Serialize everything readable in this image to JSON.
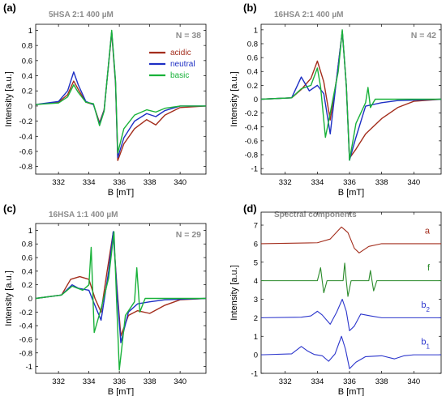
{
  "chart_data": [
    {
      "type": "line",
      "panel": "(a)",
      "title": "5HSA 2:1 400 µM",
      "n_label": "N = 38",
      "xlabel": "B [mT]",
      "ylabel": "Intensity [a.u.]",
      "xlim": [
        330.5,
        341.7
      ],
      "ylim": [
        -0.9,
        1.08
      ],
      "xticks": [
        332,
        334,
        336,
        338,
        340
      ],
      "yticks": [
        -0.8,
        -0.6,
        -0.4,
        -0.2,
        0,
        0.2,
        0.4,
        0.6,
        0.8,
        1
      ],
      "legend": [
        {
          "label": "acidic",
          "color": "#a32d1c"
        },
        {
          "label": "neutral",
          "color": "#1d2fc4"
        },
        {
          "label": "basic",
          "color": "#19b23a"
        }
      ],
      "series": [
        {
          "color": "#a32d1c",
          "points": [
            [
              330.5,
              0.02
            ],
            [
              332.0,
              0.05
            ],
            [
              332.6,
              0.15
            ],
            [
              333.0,
              0.33
            ],
            [
              333.3,
              0.22
            ],
            [
              333.8,
              0.05
            ],
            [
              334.3,
              0.02
            ],
            [
              334.7,
              -0.22
            ],
            [
              335.0,
              -0.05
            ],
            [
              335.5,
              0.97
            ],
            [
              335.75,
              0.3
            ],
            [
              335.9,
              -0.72
            ],
            [
              336.3,
              -0.5
            ],
            [
              337.0,
              -0.3
            ],
            [
              337.8,
              -0.18
            ],
            [
              338.4,
              -0.25
            ],
            [
              339.0,
              -0.12
            ],
            [
              340.0,
              -0.02
            ],
            [
              341.7,
              0.0
            ]
          ]
        },
        {
          "color": "#1d2fc4",
          "points": [
            [
              330.5,
              0.02
            ],
            [
              332.0,
              0.06
            ],
            [
              332.6,
              0.2
            ],
            [
              333.0,
              0.45
            ],
            [
              333.3,
              0.28
            ],
            [
              333.8,
              0.06
            ],
            [
              334.3,
              0.02
            ],
            [
              334.7,
              -0.24
            ],
            [
              335.0,
              -0.06
            ],
            [
              335.5,
              0.99
            ],
            [
              335.75,
              0.32
            ],
            [
              335.9,
              -0.68
            ],
            [
              336.3,
              -0.42
            ],
            [
              337.0,
              -0.2
            ],
            [
              337.8,
              -0.1
            ],
            [
              338.4,
              -0.14
            ],
            [
              339.0,
              -0.06
            ],
            [
              340.0,
              0.0
            ],
            [
              341.7,
              0.0
            ]
          ]
        },
        {
          "color": "#19b23a",
          "points": [
            [
              330.5,
              0.02
            ],
            [
              332.0,
              0.04
            ],
            [
              332.6,
              0.12
            ],
            [
              333.0,
              0.28
            ],
            [
              333.3,
              0.18
            ],
            [
              333.8,
              0.05
            ],
            [
              334.3,
              0.03
            ],
            [
              334.7,
              -0.26
            ],
            [
              335.0,
              -0.07
            ],
            [
              335.5,
              1.0
            ],
            [
              335.75,
              0.34
            ],
            [
              335.9,
              -0.62
            ],
            [
              336.3,
              -0.3
            ],
            [
              337.0,
              -0.12
            ],
            [
              337.8,
              -0.05
            ],
            [
              338.4,
              -0.08
            ],
            [
              339.0,
              -0.03
            ],
            [
              340.0,
              0.0
            ],
            [
              341.7,
              0.0
            ]
          ]
        }
      ]
    },
    {
      "type": "line",
      "panel": "(b)",
      "title": "16HSA 2:1 400 µM",
      "n_label": "N = 42",
      "xlabel": "B [mT]",
      "ylabel": "Intensity [a.u.]",
      "xlim": [
        330.5,
        341.7
      ],
      "ylim": [
        -1.08,
        1.08
      ],
      "xticks": [
        332,
        334,
        336,
        338,
        340
      ],
      "yticks": [
        -1,
        -0.8,
        -0.6,
        -0.4,
        -0.2,
        0,
        0.2,
        0.4,
        0.6,
        0.8,
        1
      ],
      "series": [
        {
          "color": "#a32d1c",
          "points": [
            [
              330.5,
              0.0
            ],
            [
              332.4,
              0.02
            ],
            [
              333.0,
              0.14
            ],
            [
              333.6,
              0.3
            ],
            [
              334.0,
              0.55
            ],
            [
              334.4,
              0.25
            ],
            [
              334.8,
              -0.3
            ],
            [
              335.2,
              0.3
            ],
            [
              335.55,
              0.98
            ],
            [
              335.8,
              0.2
            ],
            [
              336.0,
              -0.85
            ],
            [
              336.4,
              -0.72
            ],
            [
              337.0,
              -0.5
            ],
            [
              338.0,
              -0.28
            ],
            [
              339.0,
              -0.12
            ],
            [
              340.0,
              -0.03
            ],
            [
              341.7,
              0.0
            ]
          ]
        },
        {
          "color": "#1d2fc4",
          "points": [
            [
              330.5,
              0.0
            ],
            [
              332.4,
              0.02
            ],
            [
              333.0,
              0.32
            ],
            [
              333.5,
              0.12
            ],
            [
              334.0,
              0.2
            ],
            [
              334.4,
              0.08
            ],
            [
              334.8,
              -0.5
            ],
            [
              335.2,
              0.3
            ],
            [
              335.55,
              0.98
            ],
            [
              335.8,
              0.2
            ],
            [
              336.0,
              -0.88
            ],
            [
              336.4,
              -0.55
            ],
            [
              337.0,
              -0.1
            ],
            [
              338.0,
              -0.05
            ],
            [
              339.0,
              -0.02
            ],
            [
              341.7,
              0.0
            ]
          ]
        },
        {
          "color": "#19b23a",
          "points": [
            [
              330.5,
              0.0
            ],
            [
              332.4,
              0.02
            ],
            [
              333.0,
              0.15
            ],
            [
              333.6,
              0.2
            ],
            [
              334.0,
              0.45
            ],
            [
              334.2,
              0.18
            ],
            [
              334.5,
              -0.55
            ],
            [
              334.8,
              -0.2
            ],
            [
              335.3,
              0.4
            ],
            [
              335.55,
              1.0
            ],
            [
              335.8,
              0.2
            ],
            [
              336.0,
              -0.88
            ],
            [
              336.4,
              -0.35
            ],
            [
              337.0,
              -0.05
            ],
            [
              337.15,
              0.17
            ],
            [
              337.3,
              -0.12
            ],
            [
              337.6,
              0.0
            ],
            [
              339.0,
              0.0
            ],
            [
              341.7,
              0.0
            ]
          ]
        }
      ]
    },
    {
      "type": "line",
      "panel": "(c)",
      "title": "16HSA 1:1 400 µM",
      "n_label": "N = 29",
      "xlabel": "B [mT]",
      "ylabel": "Intensity [a.u.]",
      "xlim": [
        330.5,
        341.7
      ],
      "ylim": [
        -1.1,
        1.1
      ],
      "xticks": [
        332,
        334,
        336,
        338,
        340
      ],
      "yticks": [
        -1,
        -0.8,
        -0.6,
        -0.4,
        -0.2,
        0,
        0.2,
        0.4,
        0.6,
        0.8,
        1
      ],
      "series": [
        {
          "color": "#a32d1c",
          "points": [
            [
              330.5,
              0.0
            ],
            [
              332.2,
              0.05
            ],
            [
              332.8,
              0.28
            ],
            [
              333.4,
              0.32
            ],
            [
              334.0,
              0.28
            ],
            [
              334.4,
              0.0
            ],
            [
              334.8,
              -0.2
            ],
            [
              335.2,
              0.4
            ],
            [
              335.6,
              0.97
            ],
            [
              335.85,
              0.15
            ],
            [
              336.1,
              -0.55
            ],
            [
              336.6,
              -0.25
            ],
            [
              337.2,
              -0.18
            ],
            [
              338.0,
              -0.22
            ],
            [
              339.0,
              -0.1
            ],
            [
              340.0,
              -0.02
            ],
            [
              341.7,
              0.0
            ]
          ]
        },
        {
          "color": "#1d2fc4",
          "points": [
            [
              330.5,
              0.0
            ],
            [
              332.2,
              0.05
            ],
            [
              332.9,
              0.2
            ],
            [
              333.3,
              0.15
            ],
            [
              334.0,
              0.12
            ],
            [
              334.3,
              -0.05
            ],
            [
              334.8,
              -0.32
            ],
            [
              335.3,
              0.4
            ],
            [
              335.6,
              0.98
            ],
            [
              335.85,
              0.1
            ],
            [
              336.1,
              -0.65
            ],
            [
              336.6,
              -0.2
            ],
            [
              337.2,
              -0.08
            ],
            [
              338.0,
              -0.05
            ],
            [
              339.0,
              -0.02
            ],
            [
              341.7,
              0.0
            ]
          ]
        },
        {
          "color": "#19b23a",
          "points": [
            [
              330.5,
              0.0
            ],
            [
              332.2,
              0.05
            ],
            [
              332.9,
              0.18
            ],
            [
              333.6,
              0.12
            ],
            [
              334.0,
              0.2
            ],
            [
              334.15,
              0.75
            ],
            [
              334.35,
              -0.5
            ],
            [
              334.8,
              -0.15
            ],
            [
              335.3,
              0.3
            ],
            [
              335.65,
              0.98
            ],
            [
              335.85,
              -0.2
            ],
            [
              336.0,
              -1.05
            ],
            [
              336.4,
              -0.25
            ],
            [
              337.0,
              -0.05
            ],
            [
              337.15,
              0.45
            ],
            [
              337.35,
              -0.2
            ],
            [
              337.7,
              0.0
            ],
            [
              341.7,
              0.0
            ]
          ]
        }
      ]
    },
    {
      "type": "line",
      "panel": "(d)",
      "title": "Spectral components",
      "xlabel": "B [mT]",
      "ylabel": "Intensity [a.u.]",
      "xlim": [
        330.5,
        341.7
      ],
      "ylim": [
        -1.0,
        7.7
      ],
      "xticks": [
        332,
        334,
        336,
        338,
        340
      ],
      "yticks": [
        -1,
        0,
        1,
        2,
        3,
        4,
        5,
        6,
        7
      ],
      "components": [
        {
          "label": "a",
          "sub": "",
          "color": "#a32d1c",
          "baseline": 6,
          "points": [
            [
              330.5,
              6.0
            ],
            [
              334.0,
              6.05
            ],
            [
              334.8,
              6.25
            ],
            [
              335.5,
              6.9
            ],
            [
              335.9,
              6.6
            ],
            [
              336.3,
              5.75
            ],
            [
              336.6,
              5.5
            ],
            [
              337.2,
              5.85
            ],
            [
              338.0,
              6.0
            ],
            [
              341.7,
              6.0
            ]
          ]
        },
        {
          "label": "f",
          "sub": "",
          "color": "#2a8a2a",
          "baseline": 4,
          "points": [
            [
              330.5,
              4.0
            ],
            [
              334.0,
              4.0
            ],
            [
              334.2,
              4.7
            ],
            [
              334.3,
              4.0
            ],
            [
              334.4,
              3.35
            ],
            [
              334.6,
              4.0
            ],
            [
              335.6,
              4.0
            ],
            [
              335.7,
              4.95
            ],
            [
              335.8,
              4.0
            ],
            [
              335.9,
              3.15
            ],
            [
              336.1,
              4.0
            ],
            [
              337.2,
              4.0
            ],
            [
              337.3,
              4.55
            ],
            [
              337.4,
              4.0
            ],
            [
              337.5,
              3.45
            ],
            [
              337.7,
              4.0
            ],
            [
              341.7,
              4.0
            ]
          ]
        },
        {
          "label": "b",
          "sub": "2",
          "color": "#2b35cc",
          "baseline": 2,
          "points": [
            [
              330.5,
              2.0
            ],
            [
              333.0,
              2.03
            ],
            [
              333.6,
              2.1
            ],
            [
              334.0,
              2.35
            ],
            [
              334.3,
              2.15
            ],
            [
              334.8,
              1.65
            ],
            [
              335.2,
              2.3
            ],
            [
              335.55,
              3.0
            ],
            [
              335.8,
              2.35
            ],
            [
              336.0,
              1.3
            ],
            [
              336.3,
              1.55
            ],
            [
              336.7,
              2.2
            ],
            [
              337.3,
              2.1
            ],
            [
              338.0,
              2.0
            ],
            [
              341.7,
              2.0
            ]
          ]
        },
        {
          "label": "b",
          "sub": "1",
          "color": "#2b35cc",
          "baseline": 0,
          "points": [
            [
              330.5,
              0.0
            ],
            [
              332.4,
              0.05
            ],
            [
              333.0,
              0.45
            ],
            [
              333.4,
              0.2
            ],
            [
              333.8,
              0.02
            ],
            [
              334.3,
              -0.05
            ],
            [
              334.7,
              -0.35
            ],
            [
              335.1,
              0.05
            ],
            [
              335.5,
              1.0
            ],
            [
              335.75,
              0.3
            ],
            [
              336.0,
              -0.75
            ],
            [
              336.4,
              -0.4
            ],
            [
              337.0,
              -0.1
            ],
            [
              338.0,
              -0.05
            ],
            [
              338.8,
              -0.22
            ],
            [
              339.4,
              -0.05
            ],
            [
              340.0,
              0.0
            ],
            [
              341.7,
              0.0
            ]
          ]
        }
      ]
    }
  ]
}
